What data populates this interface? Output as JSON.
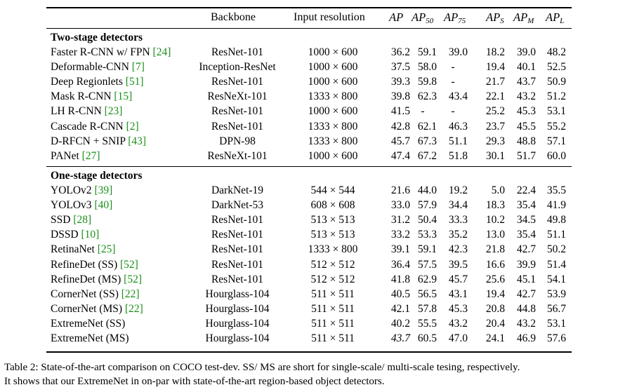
{
  "header": {
    "backbone": "Backbone",
    "resolution": "Input resolution",
    "ap": "AP",
    "ap50": "AP",
    "ap50_sub": "50",
    "ap75": "AP",
    "ap75_sub": "75",
    "aps": "AP",
    "aps_sub": "S",
    "apm": "AP",
    "apm_sub": "M",
    "apl": "AP",
    "apl_sub": "L"
  },
  "sections": {
    "two_stage": "Two-stage detectors",
    "one_stage": "One-stage detectors"
  },
  "two_stage_rows": [
    {
      "name": "Faster R-CNN w/ FPN ",
      "ref": "[24]",
      "backbone": "ResNet-101",
      "res": "1000 × 600",
      "ap": "36.2",
      "ap50": "59.1",
      "ap75": "39.0",
      "aps": "18.2",
      "apm": "39.0",
      "apl": "48.2"
    },
    {
      "name": "Deformable-CNN ",
      "ref": "[7]",
      "backbone": "Inception-ResNet",
      "res": "1000 × 600",
      "ap": "37.5",
      "ap50": "58.0",
      "ap75": "-",
      "aps": "19.4",
      "apm": "40.1",
      "apl": "52.5"
    },
    {
      "name": "Deep Regionlets ",
      "ref": "[51]",
      "backbone": "ResNet-101",
      "res": "1000 × 600",
      "ap": "39.3",
      "ap50": "59.8",
      "ap75": "-",
      "aps": "21.7",
      "apm": "43.7",
      "apl": "50.9"
    },
    {
      "name": "Mask R-CNN ",
      "ref": "[15]",
      "backbone": "ResNeXt-101",
      "res": "1333 × 800",
      "ap": "39.8",
      "ap50": "62.3",
      "ap75": "43.4",
      "aps": "22.1",
      "apm": "43.2",
      "apl": "51.2"
    },
    {
      "name": "LH R-CNN ",
      "ref": "[23]",
      "backbone": "ResNet-101",
      "res": "1000 × 600",
      "ap": "41.5",
      "ap50": "-",
      "ap75": "-",
      "aps": "25.2",
      "apm": "45.3",
      "apl": "53.1"
    },
    {
      "name": "Cascade R-CNN ",
      "ref": "[2]",
      "backbone": "ResNet-101",
      "res": "1333 × 800",
      "ap": "42.8",
      "ap50": "62.1",
      "ap75": "46.3",
      "aps": "23.7",
      "apm": "45.5",
      "apl": "55.2"
    },
    {
      "name": "D-RFCN + SNIP ",
      "ref": "[43]",
      "backbone": "DPN-98",
      "res": "1333 × 800",
      "ap": "45.7",
      "ap50": "67.3",
      "ap75": "51.1",
      "aps": "29.3",
      "apm": "48.8",
      "apl": "57.1"
    },
    {
      "name": "PANet ",
      "ref": "[27]",
      "backbone": "ResNeXt-101",
      "res": "1000 × 600",
      "ap": "47.4",
      "ap50": "67.2",
      "ap75": "51.8",
      "aps": "30.1",
      "apm": "51.7",
      "apl": "60.0"
    }
  ],
  "one_stage_rows": [
    {
      "name": "YOLOv2 ",
      "ref": "[39]",
      "backbone": "DarkNet-19",
      "res": "544 × 544",
      "ap": "21.6",
      "ap50": "44.0",
      "ap75": "19.2",
      "aps": "5.0",
      "apm": "22.4",
      "apl": "35.5"
    },
    {
      "name": "YOLOv3 ",
      "ref": "[40]",
      "backbone": "DarkNet-53",
      "res": "608 × 608",
      "ap": "33.0",
      "ap50": "57.9",
      "ap75": "34.4",
      "aps": "18.3",
      "apm": "35.4",
      "apl": "41.9"
    },
    {
      "name": "SSD ",
      "ref": "[28]",
      "backbone": "ResNet-101",
      "res": "513 × 513",
      "ap": "31.2",
      "ap50": "50.4",
      "ap75": "33.3",
      "aps": "10.2",
      "apm": "34.5",
      "apl": "49.8"
    },
    {
      "name": "DSSD ",
      "ref": "[10]",
      "backbone": "ResNet-101",
      "res": "513 × 513",
      "ap": "33.2",
      "ap50": "53.3",
      "ap75": "35.2",
      "aps": "13.0",
      "apm": "35.4",
      "apl": "51.1"
    },
    {
      "name": "RetinaNet ",
      "ref": "[25]",
      "backbone": "ResNet-101",
      "res": "1333 × 800",
      "ap": "39.1",
      "ap50": "59.1",
      "ap75": "42.3",
      "aps": "21.8",
      "apm": "42.7",
      "apl": "50.2"
    },
    {
      "name": "RefineDet (SS) ",
      "ref": "[52]",
      "backbone": "ResNet-101",
      "res": "512 × 512",
      "ap": "36.4",
      "ap50": "57.5",
      "ap75": "39.5",
      "aps": "16.6",
      "apm": "39.9",
      "apl": "51.4"
    },
    {
      "name": "RefineDet (MS) ",
      "ref": "[52]",
      "backbone": "ResNet-101",
      "res": "512 × 512",
      "ap": "41.8",
      "ap50": "62.9",
      "ap75": "45.7",
      "aps": "25.6",
      "apm": "45.1",
      "apl": "54.1"
    },
    {
      "name": "CornerNet (SS) ",
      "ref": "[22]",
      "backbone": "Hourglass-104",
      "res": "511 × 511",
      "ap": "40.5",
      "ap50": "56.5",
      "ap75": "43.1",
      "aps": "19.4",
      "apm": "42.7",
      "apl": "53.9"
    },
    {
      "name": "CornerNet (MS) ",
      "ref": "[22]",
      "backbone": "Hourglass-104",
      "res": "511 × 511",
      "ap": "42.1",
      "ap50": "57.8",
      "ap75": "45.3",
      "aps": "20.8",
      "apm": "44.8",
      "apl": "56.7"
    },
    {
      "name": "ExtremeNet (SS)",
      "ref": "",
      "backbone": "Hourglass-104",
      "res": "511 × 511",
      "ap": "40.2",
      "ap50": "55.5",
      "ap75": "43.2",
      "aps": "20.4",
      "apm": "43.2",
      "apl": "53.1"
    },
    {
      "name": "ExtremeNet (MS)",
      "ref": "",
      "backbone": "Hourglass-104",
      "res": "511 × 511",
      "ap": "43.7",
      "ap50": "60.5",
      "ap75": "47.0",
      "aps": "24.1",
      "apm": "46.9",
      "apl": "57.6"
    }
  ],
  "caption": {
    "line1": "Table 2: State-of-the-art comparison on COCO test-dev. SS/ MS are short for single-scale/ multi-scale tesing, respectively.",
    "line2": "It shows that our ExtremeNet in on-par with state-of-the-art region-based object detectors."
  },
  "colors": {
    "text": "#000000",
    "citation": "#1a8f1a",
    "background": "#ffffff"
  }
}
